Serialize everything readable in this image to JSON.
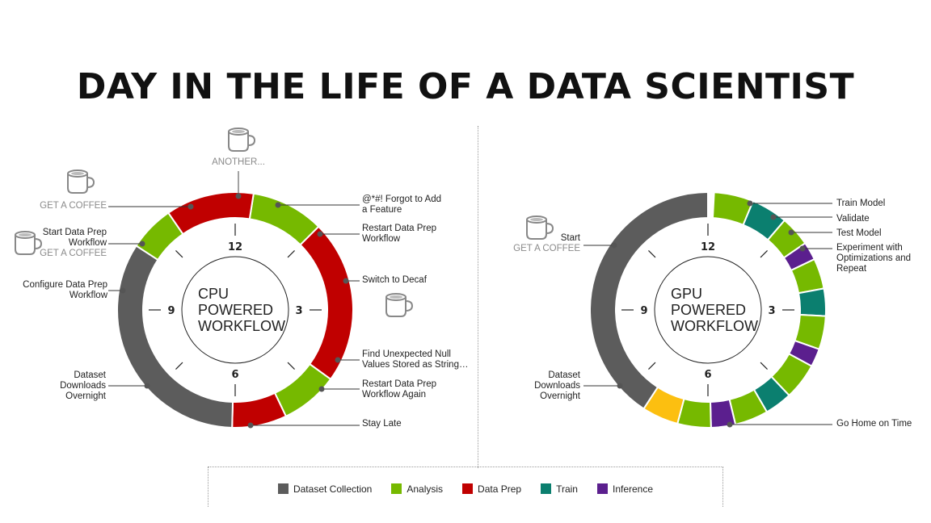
{
  "title": "DAY IN THE LIFE OF A DATA SCIENTIST",
  "colors": {
    "collection": "#5c5c5c",
    "analysis": "#76b900",
    "prep": "#c00000",
    "train": "#0b7f6f",
    "inference": "#5b1f8e",
    "home": "#fcbf10"
  },
  "legend": [
    {
      "label": "Dataset Collection",
      "key": "collection"
    },
    {
      "label": "Analysis",
      "key": "analysis"
    },
    {
      "label": "Data Prep",
      "key": "prep"
    },
    {
      "label": "Train",
      "key": "train"
    },
    {
      "label": "Inference",
      "key": "inference"
    }
  ],
  "clock_labels": [
    "12",
    "3",
    "6",
    "9"
  ],
  "cpu": {
    "center": [
      "CPU",
      "POWERED",
      "WORKFLOW"
    ],
    "segments": [
      {
        "from": 0.3,
        "to": 1.5,
        "key": "analysis"
      },
      {
        "from": 1.5,
        "to": 4.2,
        "key": "prep"
      },
      {
        "from": 4.2,
        "to": 5.15,
        "key": "analysis"
      },
      {
        "from": 5.15,
        "to": 6.05,
        "key": "prep"
      },
      {
        "from": 6.05,
        "to": 10.1,
        "key": "collection"
      },
      {
        "from": 10.1,
        "to": 10.85,
        "key": "analysis"
      },
      {
        "from": 10.85,
        "to": 12.3,
        "key": "prep"
      }
    ],
    "labels": [
      {
        "lines": [
          "@*#! Forgot to Add",
          "a Feature"
        ]
      },
      {
        "lines": [
          "Restart Data Prep",
          "Workflow"
        ]
      },
      {
        "lines": [
          "Switch to Decaf"
        ]
      },
      {
        "lines": [
          "Find Unexpected Null",
          "Values Stored as String…"
        ]
      },
      {
        "lines": [
          "Restart Data Prep",
          "Workflow Again"
        ]
      },
      {
        "lines": [
          "Stay Late"
        ]
      },
      {
        "lines": [
          "Dataset",
          "Downloads",
          "Overnight"
        ]
      },
      {
        "lines": [
          "Configure Data Prep",
          "Workflow"
        ]
      },
      {
        "lines": [
          "Start Data Prep",
          "Workflow"
        ],
        "gray": "GET A COFFEE"
      },
      {
        "gray": "GET A COFFEE"
      },
      {
        "gray": "ANOTHER..."
      }
    ]
  },
  "gpu": {
    "center": [
      "GPU",
      "POWERED",
      "WORKFLOW"
    ],
    "segments": [
      {
        "from": 0.1,
        "to": 0.75,
        "key": "analysis"
      },
      {
        "from": 0.75,
        "to": 1.35,
        "key": "train"
      },
      {
        "from": 1.35,
        "to": 1.85,
        "key": "analysis"
      },
      {
        "from": 1.85,
        "to": 2.15,
        "key": "inference"
      },
      {
        "from": 2.15,
        "to": 2.65,
        "key": "analysis"
      },
      {
        "from": 2.65,
        "to": 3.1,
        "key": "train"
      },
      {
        "from": 3.1,
        "to": 3.65,
        "key": "analysis"
      },
      {
        "from": 3.65,
        "to": 3.95,
        "key": "inference"
      },
      {
        "from": 3.95,
        "to": 4.55,
        "key": "analysis"
      },
      {
        "from": 4.55,
        "to": 5.0,
        "key": "train"
      },
      {
        "from": 5.0,
        "to": 5.55,
        "key": "analysis"
      },
      {
        "from": 5.55,
        "to": 5.95,
        "key": "inference"
      },
      {
        "from": 5.95,
        "to": 6.5,
        "key": "analysis"
      },
      {
        "from": 6.5,
        "to": 7.1,
        "key": "home"
      },
      {
        "from": 7.1,
        "to": 12.0,
        "key": "collection"
      }
    ],
    "outer_segments": [],
    "labels": [
      {
        "lines": [
          "Train Model"
        ]
      },
      {
        "lines": [
          "Validate"
        ]
      },
      {
        "lines": [
          "Test Model"
        ]
      },
      {
        "lines": [
          "Experiment with",
          "Optimizations and",
          "Repeat"
        ]
      },
      {
        "lines": [
          "Go Home on Time"
        ]
      },
      {
        "lines": [
          "Dataset",
          "Downloads",
          "Overnight"
        ]
      },
      {
        "lines": [
          "Start"
        ],
        "gray": "GET A COFFEE"
      }
    ]
  }
}
